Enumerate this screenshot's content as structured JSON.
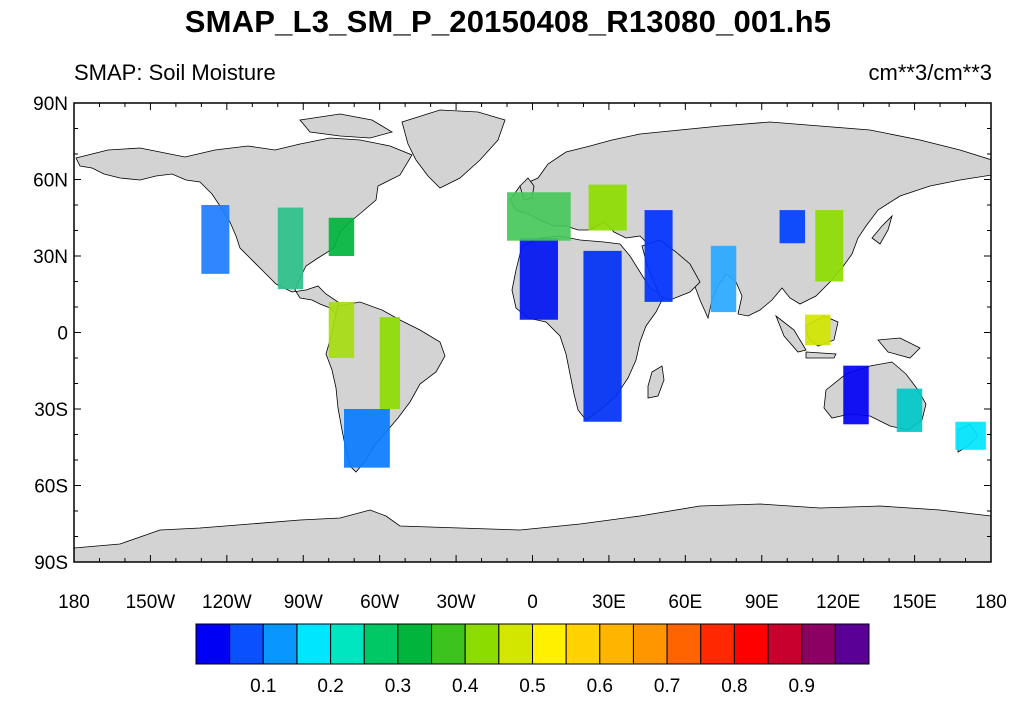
{
  "title": "SMAP_L3_SM_P_20150408_R13080_001.h5",
  "subtitle_left": "SMAP: Soil Moisture",
  "subtitle_right": "cm**3/cm**3",
  "map": {
    "projection": "cylindrical equidistant",
    "lon_range": [
      -180,
      180
    ],
    "lat_range": [
      -90,
      90
    ],
    "ocean_color": "#ffffff",
    "land_color": "#d3d3d3",
    "coastline_color": "#000000",
    "lat_labels": [
      {
        "value": 90,
        "label": "90N"
      },
      {
        "value": 60,
        "label": "60N"
      },
      {
        "value": 30,
        "label": "30N"
      },
      {
        "value": 0,
        "label": "0"
      },
      {
        "value": -30,
        "label": "30S"
      },
      {
        "value": -60,
        "label": "60S"
      },
      {
        "value": -90,
        "label": "90S"
      }
    ],
    "lon_labels": [
      {
        "value": -180,
        "label": "180"
      },
      {
        "value": -150,
        "label": "150W"
      },
      {
        "value": -120,
        "label": "120W"
      },
      {
        "value": -90,
        "label": "90W"
      },
      {
        "value": -60,
        "label": "60W"
      },
      {
        "value": -30,
        "label": "30W"
      },
      {
        "value": 0,
        "label": "0"
      },
      {
        "value": 30,
        "label": "30E"
      },
      {
        "value": 60,
        "label": "60E"
      },
      {
        "value": 90,
        "label": "90E"
      },
      {
        "value": 120,
        "label": "120E"
      },
      {
        "value": 150,
        "label": "150E"
      },
      {
        "value": 180,
        "label": "180"
      }
    ]
  },
  "colorbar": {
    "colors": [
      "#0000f5",
      "#0a50ff",
      "#0a96ff",
      "#00e6ff",
      "#00e6c0",
      "#00c864",
      "#00b43c",
      "#3cc31e",
      "#8cdc00",
      "#d2e600",
      "#fff000",
      "#ffd200",
      "#ffb400",
      "#ff9600",
      "#ff6400",
      "#ff2800",
      "#ff0000",
      "#c8002d",
      "#8c0064",
      "#5a0096"
    ],
    "labels": [
      {
        "value": 0.1,
        "label": "0.1"
      },
      {
        "value": 0.2,
        "label": "0.2"
      },
      {
        "value": 0.3,
        "label": "0.3"
      },
      {
        "value": 0.4,
        "label": "0.4"
      },
      {
        "value": 0.5,
        "label": "0.5"
      },
      {
        "value": 0.6,
        "label": "0.6"
      },
      {
        "value": 0.7,
        "label": "0.7"
      },
      {
        "value": 0.8,
        "label": "0.8"
      },
      {
        "value": 0.9,
        "label": "0.9"
      }
    ]
  },
  "swaths": [
    {
      "region": "western-north-america",
      "lon": [
        -130,
        -119
      ],
      "lat": [
        23,
        50
      ],
      "color": "#1e7cff"
    },
    {
      "region": "central-north-america",
      "lon": [
        -100,
        -90
      ],
      "lat": [
        17,
        49
      ],
      "color": "#2cc18a"
    },
    {
      "region": "eastern-north-america",
      "lon": [
        -80,
        -70
      ],
      "lat": [
        30,
        45
      ],
      "color": "#00b43c"
    },
    {
      "region": "amazon-west",
      "lon": [
        -80,
        -70
      ],
      "lat": [
        -10,
        12
      ],
      "color": "#a6dc10"
    },
    {
      "region": "amazon-east",
      "lon": [
        -60,
        -52
      ],
      "lat": [
        -30,
        6
      ],
      "color": "#8cdc00"
    },
    {
      "region": "south-america-south",
      "lon": [
        -74,
        -56
      ],
      "lat": [
        -53,
        -30
      ],
      "color": "#0a7cff"
    },
    {
      "region": "west-africa",
      "lon": [
        -5,
        10
      ],
      "lat": [
        5,
        37
      ],
      "color": "#0014f0"
    },
    {
      "region": "east-africa",
      "lon": [
        20,
        35
      ],
      "lat": [
        -35,
        32
      ],
      "color": "#0030f5"
    },
    {
      "region": "europe-west",
      "lon": [
        -10,
        15
      ],
      "lat": [
        36,
        55
      ],
      "color": "#46c85a"
    },
    {
      "region": "europe-east",
      "lon": [
        22,
        37
      ],
      "lat": [
        40,
        58
      ],
      "color": "#8cdc00"
    },
    {
      "region": "arabia",
      "lon": [
        44,
        55
      ],
      "lat": [
        12,
        48
      ],
      "color": "#0032ff"
    },
    {
      "region": "india",
      "lon": [
        70,
        80
      ],
      "lat": [
        8,
        34
      ],
      "color": "#2aa8ff"
    },
    {
      "region": "central-asia",
      "lon": [
        97,
        107
      ],
      "lat": [
        35,
        48
      ],
      "color": "#0040ff"
    },
    {
      "region": "east-china",
      "lon": [
        111,
        122
      ],
      "lat": [
        20,
        48
      ],
      "color": "#8cdc00"
    },
    {
      "region": "borneo",
      "lon": [
        107,
        117
      ],
      "lat": [
        -5,
        7
      ],
      "color": "#d2e600"
    },
    {
      "region": "australia-west",
      "lon": [
        122,
        132
      ],
      "lat": [
        -36,
        -13
      ],
      "color": "#0000f5"
    },
    {
      "region": "australia-east",
      "lon": [
        143,
        153
      ],
      "lat": [
        -39,
        -22
      ],
      "color": "#00c8c8"
    },
    {
      "region": "new-zealand",
      "lon": [
        166,
        178
      ],
      "lat": [
        -46,
        -35
      ],
      "color": "#00e6ff"
    }
  ]
}
